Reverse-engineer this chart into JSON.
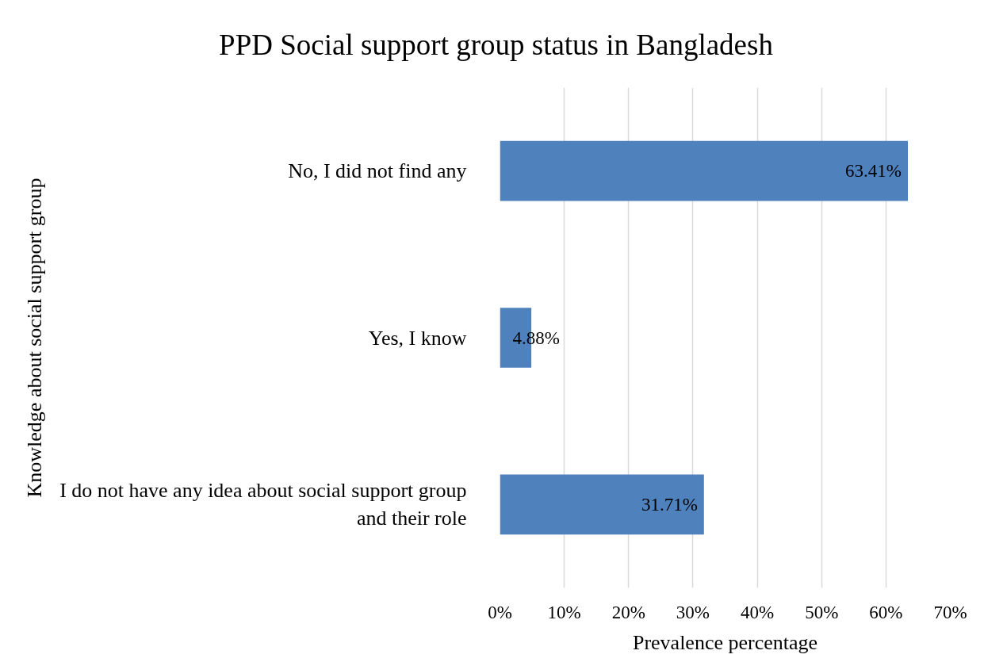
{
  "chart_data": {
    "type": "bar",
    "orientation": "horizontal",
    "title": "PPD Social support group status in Bangladesh",
    "xlabel": "Prevalence percentage",
    "ylabel": "Knowledge about social support group",
    "categories": [
      "No, I did not find any",
      "Yes, I know",
      "I do not have any idea about social support group and their role"
    ],
    "values": [
      63.41,
      4.88,
      31.71
    ],
    "color": "#4f81bd",
    "value_labels": [
      "63.41%",
      "4.88%",
      "31.71%"
    ],
    "xlim": [
      0,
      70
    ],
    "xticks": [
      {
        "value": 0,
        "label": "0%"
      },
      {
        "value": 10,
        "label": "10%"
      },
      {
        "value": 20,
        "label": "20%"
      },
      {
        "value": 30,
        "label": "30%"
      },
      {
        "value": 40,
        "label": "40%"
      },
      {
        "value": 50,
        "label": "50%"
      },
      {
        "value": 60,
        "label": "60%"
      },
      {
        "value": 70,
        "label": "70%"
      }
    ],
    "grid": "x"
  }
}
